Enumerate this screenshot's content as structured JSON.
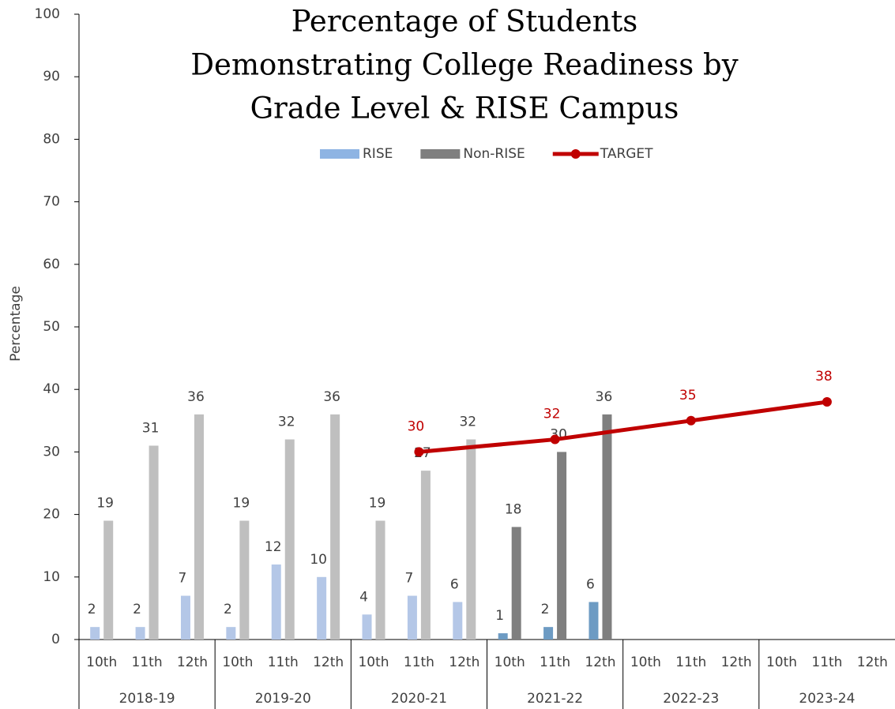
{
  "chart_data": {
    "type": "bar",
    "title": [
      "Percentage of Students",
      "Demonstrating College Readiness by",
      "Grade Level & RISE Campus"
    ],
    "y_label": "Percentage",
    "groups": [
      "2018-19",
      "2019-20",
      "2020-21",
      "2021-22",
      "2022-23",
      "2023-24"
    ],
    "categories": [
      "10th",
      "11th",
      "12th",
      "10th",
      "11th",
      "12th",
      "10th",
      "11th",
      "12th",
      "10th",
      "11th",
      "12th",
      "10th",
      "11th",
      "12th",
      "10th",
      "11th",
      "12th"
    ],
    "series": [
      {
        "name": "RISE",
        "type": "bar",
        "color": "#8eb4e3",
        "colors": [
          "#b4c7e7",
          "#b4c7e7",
          "#b4c7e7",
          "#b4c7e7",
          "#b4c7e7",
          "#b4c7e7",
          "#b4c7e7",
          "#b4c7e7",
          "#b4c7e7",
          "#6d9bc3",
          "#6d9bc3",
          "#6d9bc3",
          null,
          null,
          null,
          null,
          null,
          null
        ],
        "values": [
          2,
          2,
          7,
          2,
          12,
          10,
          4,
          7,
          6,
          1,
          2,
          6,
          null,
          null,
          null,
          null,
          null,
          null
        ]
      },
      {
        "name": "Non-RISE",
        "type": "bar",
        "color": "#7f7f7f",
        "colors": [
          "#bfbfbf",
          "#bfbfbf",
          "#bfbfbf",
          "#bfbfbf",
          "#bfbfbf",
          "#bfbfbf",
          "#bfbfbf",
          "#bfbfbf",
          "#bfbfbf",
          "#7f7f7f",
          "#7f7f7f",
          "#7f7f7f",
          null,
          null,
          null,
          null,
          null,
          null
        ],
        "values": [
          19,
          31,
          36,
          19,
          32,
          36,
          19,
          27,
          32,
          18,
          30,
          36,
          null,
          null,
          null,
          null,
          null,
          null
        ]
      },
      {
        "name": "TARGET",
        "type": "line",
        "color": "#c00000",
        "span_gaps": true,
        "values": [
          null,
          null,
          null,
          null,
          null,
          null,
          null,
          30,
          null,
          null,
          32,
          null,
          null,
          35,
          null,
          null,
          38,
          null
        ]
      }
    ],
    "ylim": [
      0,
      100
    ],
    "yticks": [
      0,
      10,
      20,
      30,
      40,
      50,
      60,
      70,
      80,
      90,
      100
    ],
    "grid": false,
    "legend": "top"
  }
}
